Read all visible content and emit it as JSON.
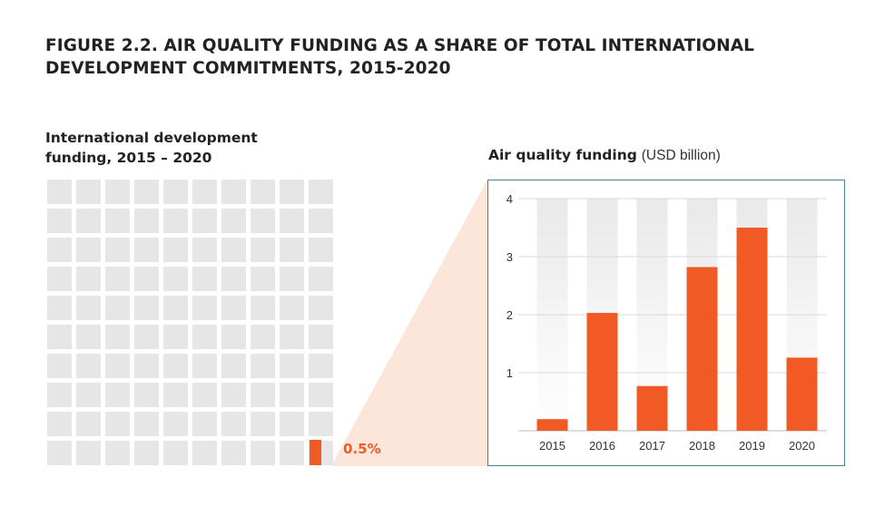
{
  "figure_title": "FIGURE 2.2.  AIR QUALITY FUNDING AS A SHARE OF TOTAL INTERNATIONAL DEVELOPMENT COMMITMENTS, 2015-2020",
  "left_panel": {
    "title": "International development funding, 2015 – 2020",
    "share_label": "0.5%"
  },
  "colors": {
    "accent": "#f15a24",
    "cell": "#e6e6e6",
    "connector": "#fbe6d9",
    "frame": "#4e7f8e"
  },
  "chart_data": {
    "type": "bar",
    "title": "Air quality funding",
    "title_unit": "(USD billion)",
    "categories": [
      "2015",
      "2016",
      "2017",
      "2018",
      "2019",
      "2020"
    ],
    "values": [
      0.2,
      2.03,
      0.77,
      2.82,
      3.5,
      1.26
    ],
    "ylim": [
      0,
      4
    ],
    "yticks": [
      "1",
      "2",
      "3",
      "4"
    ],
    "grid": true
  }
}
